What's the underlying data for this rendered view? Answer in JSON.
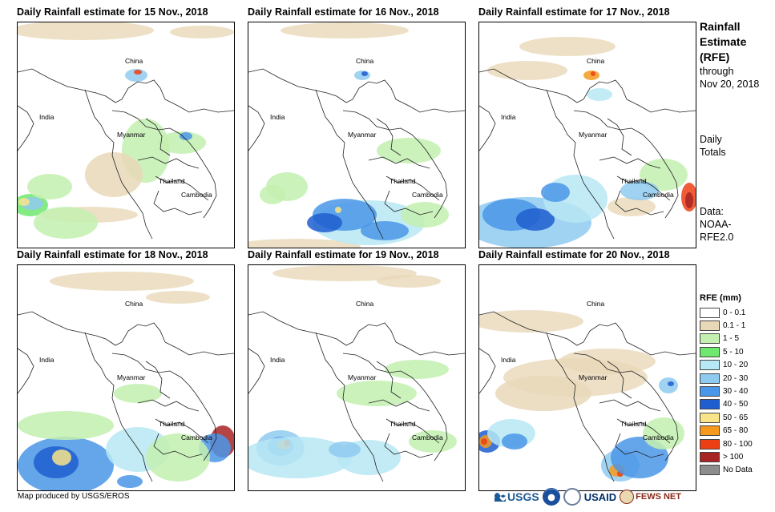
{
  "panels": [
    {
      "title": "Daily Rainfall estimate for 15 Nov., 2018"
    },
    {
      "title": "Daily Rainfall estimate for 16 Nov., 2018"
    },
    {
      "title": "Daily Rainfall estimate for 17 Nov., 2018"
    },
    {
      "title": "Daily Rainfall estimate for 18 Nov., 2018"
    },
    {
      "title": "Daily Rainfall estimate for 19 Nov., 2018"
    },
    {
      "title": "Daily Rainfall estimate for 20 Nov., 2018"
    }
  ],
  "map_labels": {
    "china": "China",
    "india": "India",
    "myanmar": "Myanmar",
    "thailand": "Thailand",
    "cambodia": "Cambodia"
  },
  "sidebar": {
    "title_line1": "Rainfall",
    "title_line2": "Estimate",
    "title_line3": "(RFE)",
    "through_line1": "through",
    "through_line2": "Nov 20, 2018",
    "totals_line1": "Daily",
    "totals_line2": "Totals",
    "data_line1": "Data:",
    "data_line2": "NOAA-",
    "data_line3": "RFE2.0"
  },
  "legend": {
    "title": "RFE (mm)",
    "items": [
      {
        "label": "0 - 0.1",
        "color": "#ffffff"
      },
      {
        "label": "0.1 - 1",
        "color": "#e8d8b8"
      },
      {
        "label": "1 - 5",
        "color": "#c3f0b0"
      },
      {
        "label": "5 - 10",
        "color": "#6ee86e"
      },
      {
        "label": "10 - 20",
        "color": "#b7e8f5"
      },
      {
        "label": "20 - 30",
        "color": "#8fcaf0"
      },
      {
        "label": "30 - 40",
        "color": "#4a96e8"
      },
      {
        "label": "40 - 50",
        "color": "#1f5ecf"
      },
      {
        "label": "50 - 65",
        "color": "#f9e48a"
      },
      {
        "label": "65 - 80",
        "color": "#f59a1e"
      },
      {
        "label": "80 - 100",
        "color": "#ec3f14"
      },
      {
        "label": "> 100",
        "color": "#a82424"
      },
      {
        "label": "No Data",
        "color": "#8c8c8c"
      }
    ]
  },
  "footer": {
    "credit": "Map produced by USGS/EROS"
  },
  "logos": {
    "usgs": "USGS",
    "usaid": "USAID",
    "fewsnet": "FEWS NET"
  }
}
